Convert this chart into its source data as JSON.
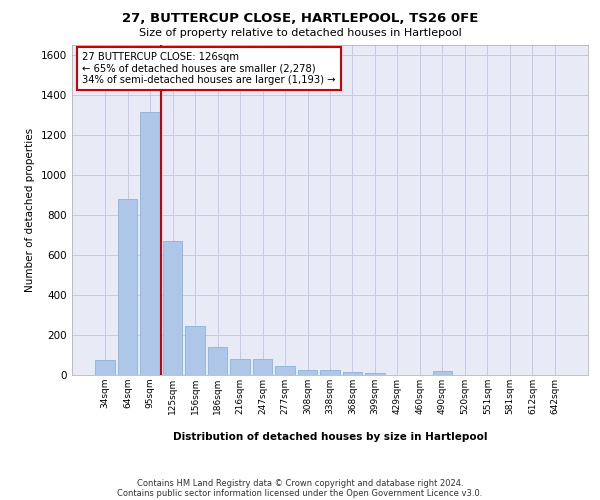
{
  "title_line1": "27, BUTTERCUP CLOSE, HARTLEPOOL, TS26 0FE",
  "title_line2": "Size of property relative to detached houses in Hartlepool",
  "xlabel": "Distribution of detached houses by size in Hartlepool",
  "ylabel": "Number of detached properties",
  "categories": [
    "34sqm",
    "64sqm",
    "95sqm",
    "125sqm",
    "156sqm",
    "186sqm",
    "216sqm",
    "247sqm",
    "277sqm",
    "308sqm",
    "338sqm",
    "368sqm",
    "399sqm",
    "429sqm",
    "460sqm",
    "490sqm",
    "520sqm",
    "551sqm",
    "581sqm",
    "612sqm",
    "642sqm"
  ],
  "values": [
    75,
    880,
    1315,
    670,
    245,
    140,
    80,
    80,
    47,
    25,
    25,
    15,
    10,
    0,
    0,
    20,
    0,
    0,
    0,
    0,
    0
  ],
  "bar_color": "#aec6e8",
  "bar_edgecolor": "#7aafd4",
  "vline_color": "#cc0000",
  "vline_x": 2.5,
  "annotation_text": "27 BUTTERCUP CLOSE: 126sqm\n← 65% of detached houses are smaller (2,278)\n34% of semi-detached houses are larger (1,193) →",
  "annotation_box_color": "#ffffff",
  "annotation_box_edgecolor": "#cc0000",
  "ylim": [
    0,
    1650
  ],
  "grid_color": "#c8c8e8",
  "bg_color": "#e8eaf6",
  "footer_line1": "Contains HM Land Registry data © Crown copyright and database right 2024.",
  "footer_line2": "Contains public sector information licensed under the Open Government Licence v3.0."
}
